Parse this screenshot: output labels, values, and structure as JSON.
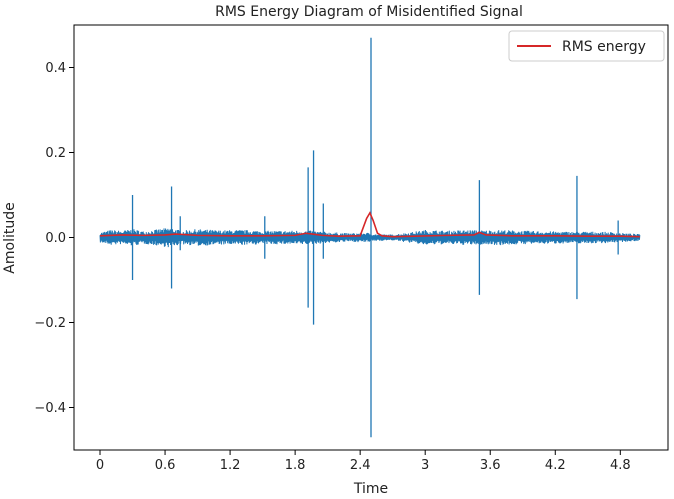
{
  "chart_data": {
    "type": "line",
    "title": "RMS Energy Diagram of Misidentified Signal",
    "xlabel": "Time",
    "ylabel": "Amolitude",
    "xlim": [
      -0.24,
      5.24
    ],
    "ylim": [
      -0.5,
      0.5
    ],
    "x_ticks": [
      0,
      0.6,
      1.2,
      1.8,
      2.4,
      3.0,
      3.6,
      4.2,
      4.8
    ],
    "x_tick_labels": [
      "0",
      "0.6",
      "1.2",
      "1.8",
      "2.4",
      "3",
      "3.6",
      "4.2",
      "4.8"
    ],
    "y_ticks": [
      -0.4,
      -0.2,
      0.0,
      0.2,
      0.4
    ],
    "y_tick_labels": [
      "−0.4",
      "−0.2",
      "0.0",
      "0.2",
      "0.4"
    ],
    "grid": false,
    "legend": {
      "position": "top-right",
      "entries": [
        {
          "label": "RMS energy",
          "color": "#d62728"
        }
      ]
    },
    "series": [
      {
        "name": "",
        "color": "#1f77b4",
        "kind": "waveform",
        "duration": 4.98,
        "envelope": [
          [
            0.0,
            0.012
          ],
          [
            0.1,
            0.018
          ],
          [
            0.2,
            0.016
          ],
          [
            0.3,
            0.02
          ],
          [
            0.4,
            0.015
          ],
          [
            0.55,
            0.02
          ],
          [
            0.65,
            0.024
          ],
          [
            0.75,
            0.016
          ],
          [
            0.9,
            0.02
          ],
          [
            1.1,
            0.017
          ],
          [
            1.3,
            0.018
          ],
          [
            1.5,
            0.016
          ],
          [
            1.7,
            0.016
          ],
          [
            1.85,
            0.017
          ],
          [
            1.95,
            0.016
          ],
          [
            2.1,
            0.013
          ],
          [
            2.3,
            0.01
          ],
          [
            2.45,
            0.012
          ],
          [
            2.55,
            0.008
          ],
          [
            2.7,
            0.007
          ],
          [
            2.85,
            0.012
          ],
          [
            3.0,
            0.018
          ],
          [
            3.2,
            0.016
          ],
          [
            3.4,
            0.018
          ],
          [
            3.55,
            0.017
          ],
          [
            3.7,
            0.018
          ],
          [
            3.9,
            0.016
          ],
          [
            4.1,
            0.015
          ],
          [
            4.3,
            0.014
          ],
          [
            4.5,
            0.014
          ],
          [
            4.7,
            0.013
          ],
          [
            4.85,
            0.01
          ],
          [
            4.98,
            0.008
          ]
        ],
        "spikes": [
          {
            "x": 0.3,
            "max": 0.1,
            "min": -0.1
          },
          {
            "x": 0.66,
            "max": 0.12,
            "min": -0.12
          },
          {
            "x": 0.74,
            "max": 0.05,
            "min": -0.03
          },
          {
            "x": 1.52,
            "max": 0.05,
            "min": -0.05
          },
          {
            "x": 1.92,
            "max": 0.165,
            "min": -0.165
          },
          {
            "x": 1.97,
            "max": 0.205,
            "min": -0.205
          },
          {
            "x": 2.06,
            "max": 0.08,
            "min": -0.05
          },
          {
            "x": 2.5,
            "max": 0.47,
            "min": -0.47
          },
          {
            "x": 3.5,
            "max": 0.135,
            "min": -0.135
          },
          {
            "x": 4.4,
            "max": 0.145,
            "min": -0.145
          },
          {
            "x": 4.78,
            "max": 0.04,
            "min": -0.04
          }
        ]
      },
      {
        "name": "RMS energy",
        "color": "#d62728",
        "x": [
          0.0,
          0.2,
          0.4,
          0.6,
          0.7,
          0.9,
          1.2,
          1.5,
          1.8,
          1.9,
          1.96,
          2.05,
          2.2,
          2.4,
          2.46,
          2.49,
          2.52,
          2.56,
          2.6,
          2.7,
          2.9,
          3.2,
          3.45,
          3.5,
          3.56,
          3.8,
          4.2,
          4.5,
          4.8,
          4.98
        ],
        "y": [
          0.004,
          0.006,
          0.005,
          0.006,
          0.008,
          0.005,
          0.004,
          0.004,
          0.005,
          0.01,
          0.008,
          0.005,
          0.003,
          0.004,
          0.045,
          0.058,
          0.04,
          0.01,
          0.004,
          0.002,
          0.003,
          0.005,
          0.006,
          0.012,
          0.006,
          0.004,
          0.004,
          0.003,
          0.003,
          0.002
        ]
      }
    ]
  }
}
